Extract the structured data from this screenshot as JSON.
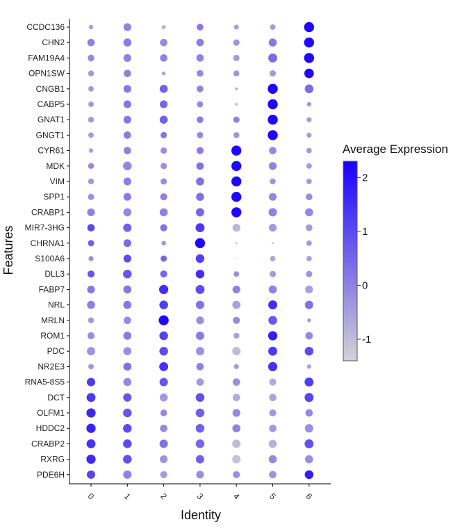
{
  "chart_data": {
    "type": "dotplot",
    "xlabel": "Identity",
    "ylabel": "Features",
    "identities": [
      "0",
      "1",
      "2",
      "3",
      "4",
      "5",
      "6"
    ],
    "features": [
      "CCDC136",
      "CHN2",
      "FAM19A4",
      "OPN1SW",
      "CNGB1",
      "CABP5",
      "GNAT1",
      "GNGT1",
      "CYR61",
      "MDK",
      "VIM",
      "SPP1",
      "CRABP1",
      "MIR7-3HG",
      "CHRNA1",
      "S100A6",
      "DLL3",
      "FABP7",
      "NRL",
      "MRLN",
      "ROM1",
      "PDC",
      "NR2E3",
      "RNA5-8S5",
      "DCT",
      "OLFM1",
      "HDDC2",
      "CRABP2",
      "RXRG",
      "PDE6H"
    ],
    "legend": {
      "title": "Average Expression",
      "ticks": [
        2,
        1,
        0,
        -1
      ],
      "range": [
        -1.4,
        2.3
      ],
      "color_low": "#d3d3d3",
      "color_high": "#1a00ff"
    },
    "avg_expression": [
      [
        -0.5,
        0.0,
        -0.7,
        0.2,
        -0.5,
        -0.4,
        2.2
      ],
      [
        0.0,
        0.1,
        -0.1,
        0.1,
        -0.3,
        0.2,
        2.2
      ],
      [
        -0.1,
        0.0,
        0.0,
        0.0,
        -0.4,
        0.4,
        2.2
      ],
      [
        -0.4,
        0.0,
        -0.6,
        -0.1,
        -0.3,
        -0.4,
        2.2
      ],
      [
        -0.4,
        0.2,
        0.6,
        0.0,
        -0.9,
        2.2,
        0.4
      ],
      [
        -0.4,
        0.2,
        0.5,
        -0.1,
        -1.0,
        2.2,
        -0.4
      ],
      [
        -0.4,
        0.2,
        0.6,
        0.1,
        0.0,
        2.2,
        -0.4
      ],
      [
        -0.4,
        0.1,
        0.2,
        -0.1,
        -0.3,
        2.2,
        -0.4
      ],
      [
        -0.5,
        0.0,
        -0.2,
        0.1,
        2.2,
        -0.1,
        -0.4
      ],
      [
        -0.1,
        -0.1,
        -0.2,
        0.3,
        2.2,
        0.0,
        -0.4
      ],
      [
        -0.4,
        0.1,
        -0.2,
        0.3,
        2.2,
        -0.3,
        -0.4
      ],
      [
        -0.3,
        0.1,
        0.0,
        0.3,
        2.2,
        -0.1,
        -0.2
      ],
      [
        0.0,
        -0.1,
        0.0,
        0.5,
        2.2,
        0.0,
        -0.1
      ],
      [
        1.0,
        0.6,
        0.3,
        1.3,
        -0.9,
        -0.4,
        -0.4
      ],
      [
        0.6,
        0.4,
        -0.3,
        2.2,
        -1.3,
        -1.2,
        -0.4
      ],
      [
        -0.2,
        1.0,
        0.5,
        1.2,
        -1.4,
        -0.6,
        -0.5
      ],
      [
        0.8,
        0.8,
        0.5,
        1.5,
        -0.2,
        -0.4,
        -0.3
      ],
      [
        0.2,
        0.2,
        1.5,
        1.0,
        0.0,
        0.0,
        -0.5
      ],
      [
        0.0,
        0.2,
        1.2,
        0.3,
        -0.5,
        1.5,
        0.3
      ],
      [
        -0.4,
        -0.1,
        2.2,
        -0.2,
        -0.1,
        0.8,
        -0.5
      ],
      [
        -0.2,
        0.1,
        1.1,
        0.1,
        -0.5,
        1.8,
        -0.1
      ],
      [
        -0.3,
        -0.2,
        1.0,
        -0.3,
        -1.0,
        1.3,
        1.0
      ],
      [
        -0.4,
        0.3,
        1.4,
        0.0,
        -0.4,
        1.4,
        -0.6
      ],
      [
        1.3,
        -0.1,
        0.8,
        -0.4,
        -0.2,
        -0.7,
        1.2
      ],
      [
        1.3,
        0.8,
        -0.4,
        0.9,
        -0.7,
        -0.6,
        1.1
      ],
      [
        1.6,
        0.8,
        -0.1,
        0.6,
        -0.1,
        -0.4,
        -0.1
      ],
      [
        1.7,
        1.0,
        -0.1,
        0.6,
        0.0,
        -0.4,
        -0.2
      ],
      [
        1.4,
        1.0,
        0.3,
        0.5,
        -1.0,
        -0.8,
        0.9
      ],
      [
        1.6,
        0.9,
        -0.3,
        0.6,
        -1.1,
        -0.1,
        -0.2
      ],
      [
        1.1,
        0.0,
        -0.4,
        -0.2,
        -0.2,
        -0.3,
        1.8
      ]
    ],
    "percent_expressed": [
      [
        20,
        60,
        15,
        45,
        25,
        30,
        100
      ],
      [
        55,
        65,
        55,
        55,
        40,
        65,
        100
      ],
      [
        45,
        60,
        55,
        55,
        40,
        80,
        100
      ],
      [
        35,
        55,
        15,
        45,
        35,
        40,
        90
      ],
      [
        30,
        60,
        65,
        45,
        10,
        100,
        75
      ],
      [
        30,
        60,
        60,
        40,
        8,
        100,
        20
      ],
      [
        35,
        60,
        65,
        45,
        40,
        100,
        25
      ],
      [
        30,
        55,
        40,
        40,
        35,
        100,
        25
      ],
      [
        20,
        55,
        40,
        50,
        100,
        55,
        30
      ],
      [
        35,
        75,
        40,
        55,
        100,
        60,
        30
      ],
      [
        35,
        60,
        40,
        65,
        100,
        35,
        30
      ],
      [
        40,
        60,
        50,
        65,
        100,
        60,
        45
      ],
      [
        60,
        65,
        65,
        70,
        100,
        70,
        65
      ],
      [
        55,
        70,
        50,
        80,
        60,
        60,
        45
      ],
      [
        40,
        60,
        20,
        100,
        5,
        5,
        30
      ],
      [
        25,
        60,
        40,
        75,
        2,
        30,
        30
      ],
      [
        50,
        75,
        50,
        75,
        30,
        40,
        40
      ],
      [
        60,
        65,
        85,
        80,
        60,
        65,
        60
      ],
      [
        65,
        65,
        75,
        70,
        65,
        80,
        70
      ],
      [
        35,
        55,
        100,
        60,
        50,
        75,
        15
      ],
      [
        50,
        65,
        75,
        70,
        35,
        85,
        55
      ],
      [
        70,
        65,
        75,
        70,
        70,
        80,
        75
      ],
      [
        30,
        65,
        80,
        55,
        25,
        85,
        20
      ],
      [
        70,
        65,
        70,
        55,
        55,
        50,
        80
      ],
      [
        80,
        70,
        65,
        75,
        55,
        55,
        80
      ],
      [
        85,
        75,
        45,
        75,
        60,
        50,
        55
      ],
      [
        85,
        75,
        55,
        75,
        65,
        55,
        70
      ],
      [
        80,
        75,
        70,
        75,
        70,
        65,
        80
      ],
      [
        85,
        75,
        60,
        70,
        70,
        65,
        65
      ],
      [
        70,
        70,
        50,
        60,
        50,
        55,
        75
      ]
    ]
  }
}
